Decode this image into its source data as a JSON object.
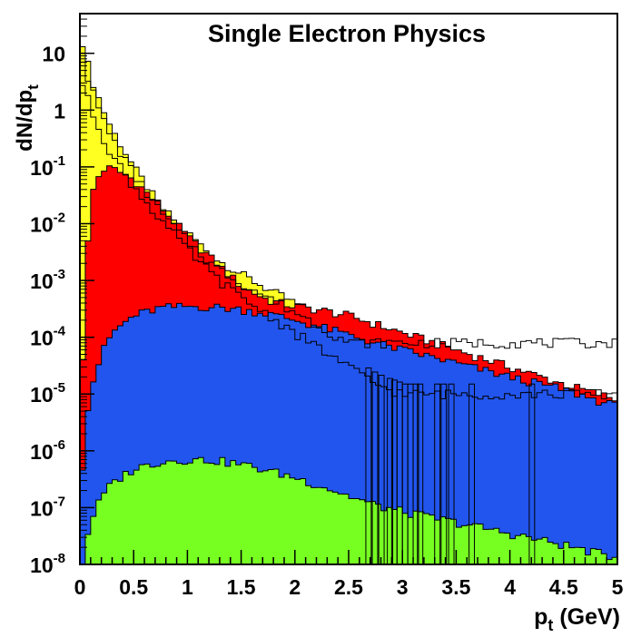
{
  "chart_data": {
    "type": "area",
    "title": "Single Electron Physics",
    "xlabel": "p",
    "xlabel_sub": "t",
    "xlabel_unit": " (GeV)",
    "ylabel": "dN/dp",
    "ylabel_sub": "t",
    "xlim": [
      0,
      5
    ],
    "ylim": [
      1e-08,
      50
    ],
    "yscale": "log",
    "grid": false,
    "x_ticks": [
      "0",
      "0.5",
      "1",
      "1.5",
      "2",
      "2.5",
      "3",
      "3.5",
      "4",
      "4.5",
      "5"
    ],
    "y_ticks": [
      {
        "value": 10,
        "base": "10",
        "exp": ""
      },
      {
        "value": 1,
        "base": "1",
        "exp": ""
      },
      {
        "value": 0.1,
        "base": "10",
        "exp": "-1"
      },
      {
        "value": 0.01,
        "base": "10",
        "exp": "-2"
      },
      {
        "value": 0.001,
        "base": "10",
        "exp": "-3"
      },
      {
        "value": 0.0001,
        "base": "10",
        "exp": "-4"
      },
      {
        "value": 1e-05,
        "base": "10",
        "exp": "-5"
      },
      {
        "value": 1e-06,
        "base": "10",
        "exp": "-6"
      },
      {
        "value": 1e-07,
        "base": "10",
        "exp": "-7"
      },
      {
        "value": 1e-08,
        "base": "10",
        "exp": "-8"
      }
    ],
    "series": [
      {
        "color": "#ffff22",
        "points": [
          [
            0,
            25
          ],
          [
            0.1,
            4
          ],
          [
            0.2,
            1.2
          ],
          [
            0.3,
            0.45
          ],
          [
            0.5,
            0.1
          ],
          [
            0.75,
            0.02
          ],
          [
            1.0,
            0.007
          ],
          [
            1.25,
            0.0025
          ],
          [
            1.5,
            0.0013
          ],
          [
            1.75,
            0.0007
          ],
          [
            2.0,
            0.0004
          ],
          [
            2.25,
            0.00022
          ],
          [
            2.5,
            0.00012
          ],
          [
            2.75,
            7e-05
          ],
          [
            3.0,
            4.5e-05
          ],
          [
            3.5,
            2.5e-05
          ],
          [
            4.0,
            1.5e-05
          ],
          [
            4.5,
            1e-05
          ],
          [
            5.0,
            7e-06
          ]
        ]
      },
      {
        "color": "#ff0000",
        "points": [
          [
            0,
            3e-06
          ],
          [
            0.05,
            0.0007
          ],
          [
            0.1,
            0.03
          ],
          [
            0.2,
            0.09
          ],
          [
            0.3,
            0.095
          ],
          [
            0.5,
            0.06
          ],
          [
            0.75,
            0.02
          ],
          [
            1.0,
            0.006
          ],
          [
            1.25,
            0.0022
          ],
          [
            1.5,
            0.0008
          ],
          [
            1.75,
            0.00045
          ],
          [
            2.0,
            0.00035
          ],
          [
            2.25,
            0.0003
          ],
          [
            2.5,
            0.00024
          ],
          [
            2.75,
            0.00017
          ],
          [
            3.0,
            0.00012
          ],
          [
            3.5,
            6e-05
          ],
          [
            4.0,
            3e-05
          ],
          [
            4.5,
            1.5e-05
          ],
          [
            5.0,
            8e-06
          ]
        ]
      },
      {
        "color": "#2255ee",
        "points": [
          [
            0,
            1e-07
          ],
          [
            0.05,
            3e-06
          ],
          [
            0.1,
            1.2e-05
          ],
          [
            0.2,
            5e-05
          ],
          [
            0.3,
            0.00012
          ],
          [
            0.5,
            0.00024
          ],
          [
            0.75,
            0.00033
          ],
          [
            1.0,
            0.00035
          ],
          [
            1.25,
            0.00034
          ],
          [
            1.5,
            0.00031
          ],
          [
            1.75,
            0.00026
          ],
          [
            2.0,
            0.0002
          ],
          [
            2.25,
            0.00015
          ],
          [
            2.5,
            0.00011
          ],
          [
            2.75,
            8e-05
          ],
          [
            3.0,
            6e-05
          ],
          [
            3.5,
            3.5e-05
          ],
          [
            4.0,
            2e-05
          ],
          [
            4.5,
            1.2e-05
          ],
          [
            5.0,
            6e-06
          ]
        ]
      },
      {
        "color": "#77ff22",
        "points": [
          [
            0,
            1e-09
          ],
          [
            0.05,
            2e-08
          ],
          [
            0.1,
            6e-08
          ],
          [
            0.2,
            1.5e-07
          ],
          [
            0.3,
            2.7e-07
          ],
          [
            0.5,
            4.8e-07
          ],
          [
            0.75,
            6.5e-07
          ],
          [
            1.0,
            7e-07
          ],
          [
            1.25,
            6.8e-07
          ],
          [
            1.5,
            5.8e-07
          ],
          [
            1.75,
            4.5e-07
          ],
          [
            2.0,
            3.4e-07
          ],
          [
            2.25,
            2.4e-07
          ],
          [
            2.5,
            1.6e-07
          ],
          [
            2.75,
            1.1e-07
          ],
          [
            3.0,
            8.5e-08
          ],
          [
            3.5,
            5.5e-08
          ],
          [
            4.0,
            3.5e-08
          ],
          [
            4.5,
            2.2e-08
          ],
          [
            5.0,
            1.3e-08
          ]
        ]
      }
    ],
    "outlines": [
      {
        "points": [
          [
            0,
            12
          ],
          [
            0.1,
            2.6
          ],
          [
            0.2,
            0.8
          ],
          [
            0.3,
            0.32
          ],
          [
            0.5,
            0.075
          ],
          [
            0.75,
            0.016
          ],
          [
            1.0,
            0.005
          ],
          [
            1.25,
            0.0018
          ],
          [
            1.5,
            0.0009
          ],
          [
            1.75,
            0.0005
          ],
          [
            2.0,
            0.00028
          ],
          [
            2.25,
            0.00015
          ],
          [
            2.5,
            8e-05
          ]
        ]
      },
      {
        "points": [
          [
            0,
            4
          ],
          [
            0.1,
            1.1
          ],
          [
            0.2,
            0.4
          ],
          [
            0.3,
            0.16
          ],
          [
            0.5,
            0.045
          ],
          [
            0.75,
            0.012
          ],
          [
            1.0,
            0.0035
          ],
          [
            1.25,
            0.0012
          ],
          [
            1.5,
            0.0005
          ],
          [
            1.75,
            0.00025
          ],
          [
            2.0,
            0.00012
          ],
          [
            2.25,
            6e-05
          ],
          [
            2.5,
            3e-05
          ],
          [
            2.75,
            1.5e-05
          ],
          [
            3.0,
            1e-05
          ]
        ]
      }
    ],
    "spikes": [
      2.66,
      2.72,
      2.78,
      2.86,
      2.9,
      2.95,
      3.0,
      3.05,
      3.1,
      3.14,
      3.3,
      3.36,
      3.43,
      3.62,
      4.18
    ]
  }
}
